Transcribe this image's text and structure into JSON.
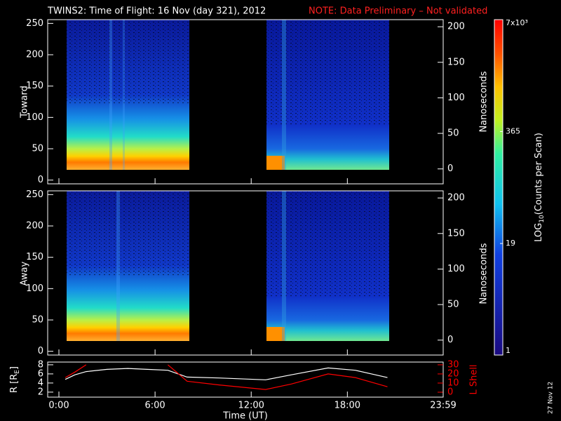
{
  "title": "TWINS2: Time of Flight: 16 Nov (day 321), 2012",
  "note": "NOTE: Data Preliminary – Not validated",
  "stamp": "27 Nov 12",
  "colorbar": {
    "title": "LOG",
    "title_sub": "10",
    "title_rest": "(Counts per Scan)",
    "lim": [
      1,
      7000
    ],
    "log": true,
    "ticks": [
      1,
      19,
      365,
      {
        "value": 7000,
        "label": "7x10³"
      }
    ]
  },
  "chart_data": [
    {
      "type": "spectrogram",
      "ylabel": "Toward",
      "y2label": "Nanoseconds",
      "ylim": [
        -6,
        256
      ],
      "yticks": [
        0,
        50,
        100,
        150,
        200,
        250
      ],
      "y2lim": [
        -21,
        210
      ],
      "y2ticks": [
        0,
        50,
        100,
        150,
        200
      ]
    },
    {
      "type": "spectrogram",
      "ylabel": "Away",
      "y2label": "Nanoseconds",
      "ylim": [
        -6,
        256
      ],
      "yticks": [
        0,
        50,
        100,
        150,
        200,
        250
      ],
      "y2lim": [
        -21,
        210
      ],
      "y2ticks": [
        0,
        50,
        100,
        150,
        200
      ]
    },
    {
      "type": "line",
      "ylabel": "R [R",
      "ylabel_sub": "E",
      "ylabel_end": "]",
      "y2label": "L Shell",
      "xlabel": "Time (UT)",
      "xlim": [
        -0.7,
        23.98
      ],
      "xticks": [
        {
          "value": 0,
          "label": "0:00"
        },
        {
          "value": 6,
          "label": "6:00"
        },
        {
          "value": 12,
          "label": "12:00"
        },
        {
          "value": 18,
          "label": "18:00"
        },
        {
          "value": 23.98,
          "label": "23:59"
        }
      ],
      "ylim": [
        0.9,
        8.6
      ],
      "yticks": [
        2,
        4,
        6,
        8
      ],
      "y2lim": [
        -5.4,
        33
      ],
      "y2ticks": [
        0,
        10,
        20,
        30
      ],
      "y2color": "#ff0000",
      "x": [
        0.4,
        1,
        1.7,
        3,
        4.3,
        5.5,
        6.8,
        8,
        10,
        12.9,
        14.5,
        16.8,
        18.5,
        20.5
      ],
      "series": [
        {
          "color": "#ffffff",
          "values": [
            4.8,
            5.8,
            6.5,
            7.0,
            7.2,
            7.0,
            6.8,
            5.3,
            5.1,
            4.7,
            5.8,
            7.3,
            6.8,
            5.2
          ]
        },
        {
          "color": "#ff0000",
          "axis": "y2",
          "values": [
            16,
            22,
            30,
            null,
            null,
            null,
            30,
            12,
            8,
            3,
            9,
            20,
            16,
            6
          ]
        }
      ]
    }
  ]
}
